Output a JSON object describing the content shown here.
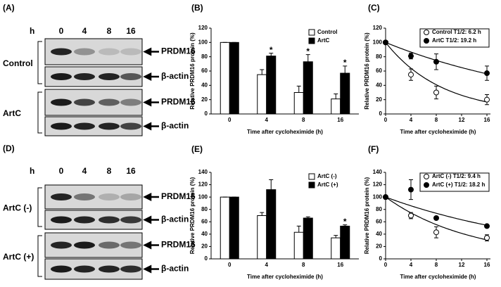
{
  "blots": [
    {
      "label": "(A)",
      "hour_label": "h",
      "lanes": [
        "0",
        "4",
        "8",
        "16"
      ],
      "groups": [
        "Control",
        "ArtC"
      ],
      "bands": [
        "PRDM16",
        "β-actin",
        "PRDM16",
        "β-actin"
      ]
    },
    {
      "label": "(D)",
      "hour_label": "h",
      "lanes": [
        "0",
        "4",
        "8",
        "16"
      ],
      "groups": [
        "ArtC (-)",
        "ArtC (+)"
      ],
      "bands": [
        "PRDM16",
        "β-actin",
        "PRDM16",
        "β-actin"
      ]
    }
  ],
  "chart_data": [
    {
      "type": "bar",
      "label": "(B)",
      "ylabel": "Relative PRDM16 protein (%)",
      "xlabel": "Time after cycloheximide (h)",
      "categories": [
        "0",
        "4",
        "8",
        "16"
      ],
      "ylim": [
        0,
        120
      ],
      "yticks": [
        0,
        20,
        40,
        60,
        80,
        100,
        120
      ],
      "legend": "upper right",
      "series": [
        {
          "name": "Control",
          "color": "#ffffff",
          "values": [
            100,
            55,
            30,
            21
          ],
          "errors": [
            0,
            7,
            9,
            7
          ]
        },
        {
          "name": "ArtC",
          "color": "#000000",
          "values": [
            100,
            81,
            73,
            57
          ],
          "errors": [
            0,
            4,
            10,
            10
          ],
          "significance": [
            null,
            "*",
            "*",
            "*"
          ]
        }
      ]
    },
    {
      "type": "line",
      "label": "(C)",
      "ylabel": "Relative PRDM16 protein (%)",
      "xlabel": "Time after cycloheximide (h)",
      "x": [
        0,
        4,
        8,
        16
      ],
      "xlim": [
        0,
        16
      ],
      "xticks": [
        0,
        4,
        8,
        12,
        16
      ],
      "ylim": [
        0,
        120
      ],
      "yticks": [
        0,
        20,
        40,
        60,
        80,
        100,
        120
      ],
      "legend": "upper right",
      "series": [
        {
          "name": "Control T1/2: 6.2 h",
          "color": "#ffffff",
          "values": [
            100,
            55,
            30,
            20
          ],
          "errors": [
            0,
            8,
            9,
            7
          ],
          "half_life": 6.2
        },
        {
          "name": "ArtC T1/2: 19.2 h",
          "color": "#000000",
          "values": [
            100,
            81,
            73,
            57
          ],
          "errors": [
            0,
            4,
            11,
            10
          ],
          "half_life": 19.2
        }
      ]
    },
    {
      "type": "bar",
      "label": "(E)",
      "ylabel": "Relative PRDM16 protein (%)",
      "xlabel": "Time after cycloheximide (h)",
      "categories": [
        "0",
        "4",
        "8",
        "16"
      ],
      "ylim": [
        0,
        140
      ],
      "yticks": [
        0,
        20,
        40,
        60,
        80,
        100,
        120,
        140
      ],
      "legend": "upper right",
      "series": [
        {
          "name": "ArtC (-)",
          "color": "#ffffff",
          "values": [
            100,
            70,
            43,
            34
          ],
          "errors": [
            0,
            5,
            10,
            4
          ]
        },
        {
          "name": "ArtC (+)",
          "color": "#000000",
          "values": [
            100,
            112,
            66,
            53
          ],
          "errors": [
            0,
            16,
            2,
            2
          ],
          "significance": [
            null,
            null,
            null,
            "*"
          ]
        }
      ]
    },
    {
      "type": "line",
      "label": "(F)",
      "ylabel": "Relative PRDM16 protein (%)",
      "xlabel": "Time after cycloheximide (h)",
      "x": [
        0,
        4,
        8,
        16
      ],
      "xlim": [
        0,
        16
      ],
      "xticks": [
        0,
        4,
        8,
        12,
        16
      ],
      "ylim": [
        0,
        140
      ],
      "yticks": [
        0,
        20,
        40,
        60,
        80,
        100,
        120,
        140
      ],
      "legend": "upper right",
      "series": [
        {
          "name": "ArtC (-) T1/2: 9.4 h",
          "color": "#ffffff",
          "values": [
            100,
            70,
            43,
            34
          ],
          "errors": [
            0,
            5,
            9,
            5
          ],
          "half_life": 9.4
        },
        {
          "name": "ArtC (+) T1/2: 18.2 h",
          "color": "#000000",
          "values": [
            100,
            112,
            66,
            53
          ],
          "errors": [
            0,
            16,
            0,
            1
          ],
          "half_life": 18.2
        }
      ]
    }
  ]
}
